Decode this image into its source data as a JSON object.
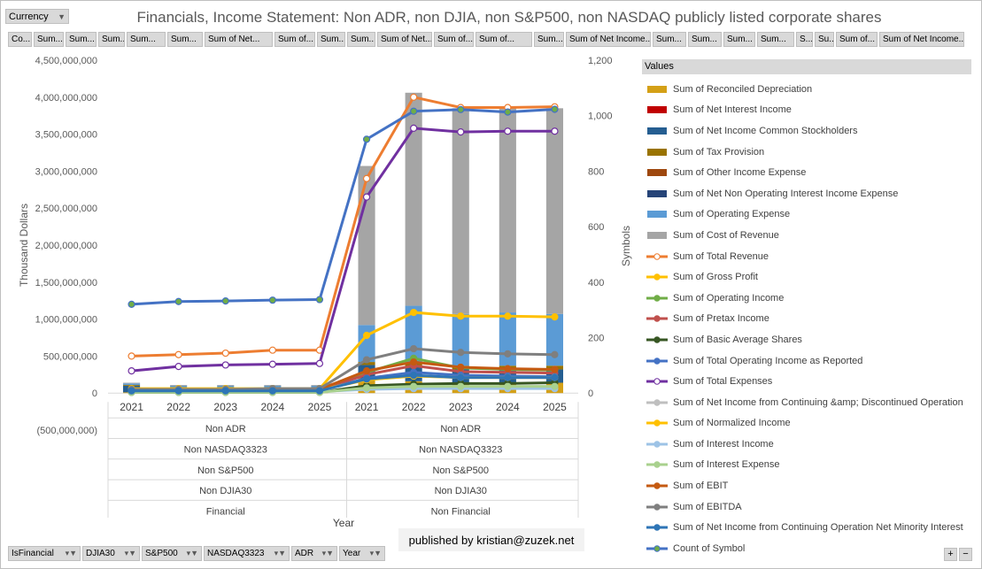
{
  "currency_button": {
    "label": "Currency"
  },
  "column_buttons": [
    "Co...",
    "Sum...",
    "Sum...",
    "Sum...",
    "Sum...",
    "Sum...",
    "Sum of Net...",
    "Sum of...",
    "Sum...",
    "Sum...",
    "Sum of Net...",
    "Sum of...",
    "Sum of...",
    "Sum...",
    "Sum of Net Income...",
    "Sum...",
    "Sum...",
    "Sum...",
    "Sum...",
    "S...",
    "Su...",
    "Sum of...",
    "Sum of Net Income..."
  ],
  "row_filters": [
    "IsFinancial",
    "DJIA30",
    "S&P500",
    "NASDAQ3323",
    "ADR",
    "Year"
  ],
  "published": "published by kristian@zuzek.net",
  "legend_title": "Values",
  "colors": {
    "button_bg": "#d9d9d9",
    "text": "#595959"
  },
  "chart_data": {
    "type": "bar",
    "title": "Financials, Income Statement: Non ADR, non DJIA, non S&P500, non NASDAQ publicly listed corporate shares",
    "ylabel": "Thousand Dollars",
    "y2label": "Symbols",
    "xlabel": "Year",
    "ylim": [
      -500000000,
      4500000000
    ],
    "y2lim": [
      0,
      1200
    ],
    "yticks": [
      "4,500,000,000",
      "4,000,000,000",
      "3,500,000,000",
      "3,000,000,000",
      "2,500,000,000",
      "2,000,000,000",
      "1,500,000,000",
      "1,000,000,000",
      "500,000,000",
      "0",
      "(500,000,000)"
    ],
    "y2ticks": [
      "1,200",
      "1,000",
      "800",
      "600",
      "400",
      "200",
      "0"
    ],
    "categories": [
      "2021",
      "2022",
      "2023",
      "2024",
      "2025",
      "2021",
      "2022",
      "2023",
      "2024",
      "2025"
    ],
    "group_levels": [
      {
        "groups": [
          "Non ADR",
          "Non ADR"
        ]
      },
      {
        "groups": [
          "Non NASDAQ3323",
          "Non NASDAQ3323"
        ]
      },
      {
        "groups": [
          "Non S&P500",
          "Non S&P500"
        ]
      },
      {
        "groups": [
          "Non DJIA30",
          "Non DJIA30"
        ]
      },
      {
        "groups": [
          "Financial",
          "Non Financial"
        ]
      }
    ],
    "bar_series": [
      {
        "name": "Sum of Reconciled Depreciation",
        "color": "#d4a017",
        "values": [
          10000000,
          10000000,
          10000000,
          10000000,
          10000000,
          200000000,
          160000000,
          140000000,
          140000000,
          140000000
        ]
      },
      {
        "name": "Sum of Net Interest Income",
        "color": "#c00000",
        "values": [
          0,
          0,
          0,
          0,
          0,
          0,
          0,
          0,
          0,
          0
        ]
      },
      {
        "name": "Sum of Net Income Common Stockholders",
        "color": "#255e91",
        "values": [
          90000000,
          60000000,
          60000000,
          60000000,
          60000000,
          180000000,
          200000000,
          180000000,
          180000000,
          180000000
        ]
      },
      {
        "name": "Sum of Tax Provision",
        "color": "#997300",
        "values": [
          10000000,
          10000000,
          10000000,
          10000000,
          10000000,
          40000000,
          50000000,
          50000000,
          50000000,
          50000000
        ]
      },
      {
        "name": "Sum of Other Income Expense",
        "color": "#9e480e",
        "values": [
          0,
          0,
          0,
          0,
          0,
          0,
          0,
          0,
          0,
          0
        ]
      },
      {
        "name": "Sum of Net Non Operating Interest Income Expense",
        "color": "#264478",
        "values": [
          0,
          0,
          0,
          0,
          0,
          0,
          0,
          0,
          0,
          0
        ]
      },
      {
        "name": "Sum of Operating Expense",
        "color": "#5b9bd5",
        "values": [
          20000000,
          20000000,
          20000000,
          20000000,
          20000000,
          500000000,
          770000000,
          700000000,
          720000000,
          700000000
        ]
      },
      {
        "name": "Sum of Cost of Revenue",
        "color": "#a5a5a5",
        "values": [
          10000000,
          10000000,
          10000000,
          10000000,
          10000000,
          2150000000,
          2880000000,
          2780000000,
          2770000000,
          2780000000
        ]
      }
    ],
    "line_series": [
      {
        "name": "Sum of Total Revenue",
        "color": "#ed7d31",
        "marker": "hollow",
        "axis": "primary",
        "values": [
          500000000,
          520000000,
          540000000,
          580000000,
          580000000,
          2900000000,
          4000000000,
          3860000000,
          3860000000,
          3870000000
        ]
      },
      {
        "name": "Sum of Gross Profit",
        "color": "#ffc000",
        "marker": "filled",
        "axis": "primary",
        "values": [
          60000000,
          60000000,
          60000000,
          60000000,
          60000000,
          780000000,
          1090000000,
          1040000000,
          1040000000,
          1030000000
        ]
      },
      {
        "name": "Sum of Operating Income",
        "color": "#70ad47",
        "marker": "filled",
        "axis": "primary",
        "values": [
          30000000,
          30000000,
          30000000,
          30000000,
          30000000,
          280000000,
          470000000,
          340000000,
          320000000,
          310000000
        ]
      },
      {
        "name": "Sum of Pretax Income",
        "color": "#c0504d",
        "marker": "filled",
        "axis": "primary",
        "values": [
          30000000,
          40000000,
          30000000,
          40000000,
          40000000,
          250000000,
          370000000,
          290000000,
          280000000,
          270000000
        ]
      },
      {
        "name": "Sum of Basic Average Shares",
        "color": "#375623",
        "marker": "filled",
        "axis": "primary",
        "values": [
          10000000,
          10000000,
          10000000,
          10000000,
          10000000,
          100000000,
          120000000,
          130000000,
          130000000,
          140000000
        ]
      },
      {
        "name": "Sum of Total Operating Income as Reported",
        "color": "#4472c4",
        "marker": "filled",
        "axis": "primary",
        "values": [
          30000000,
          30000000,
          30000000,
          30000000,
          30000000,
          200000000,
          280000000,
          240000000,
          230000000,
          220000000
        ]
      },
      {
        "name": "Sum of Total Expenses",
        "color": "#7030a0",
        "marker": "hollow",
        "axis": "primary",
        "values": [
          300000000,
          360000000,
          380000000,
          390000000,
          400000000,
          2650000000,
          3580000000,
          3530000000,
          3540000000,
          3540000000
        ]
      },
      {
        "name": "Sum of Net Income from Continuing &amp; Discontinued Operation",
        "color": "#bfbfbf",
        "marker": "filled",
        "axis": "primary",
        "values": [
          40000000,
          40000000,
          40000000,
          40000000,
          40000000,
          180000000,
          230000000,
          210000000,
          210000000,
          210000000
        ]
      },
      {
        "name": "Sum of Normalized Income",
        "color": "#ffc000",
        "marker": "filled",
        "axis": "primary",
        "values": [
          40000000,
          40000000,
          40000000,
          40000000,
          40000000,
          180000000,
          230000000,
          210000000,
          210000000,
          210000000
        ]
      },
      {
        "name": "Sum of Interest Income",
        "color": "#9dc3e6",
        "marker": "filled",
        "axis": "primary",
        "values": [
          20000000,
          20000000,
          20000000,
          20000000,
          20000000,
          50000000,
          60000000,
          60000000,
          60000000,
          60000000
        ]
      },
      {
        "name": "Sum of Interest Expense",
        "color": "#a9d18e",
        "marker": "filled",
        "axis": "primary",
        "values": [
          10000000,
          10000000,
          10000000,
          10000000,
          10000000,
          70000000,
          90000000,
          90000000,
          90000000,
          90000000
        ]
      },
      {
        "name": "Sum of EBIT",
        "color": "#c55a11",
        "marker": "filled",
        "axis": "primary",
        "values": [
          40000000,
          40000000,
          40000000,
          50000000,
          50000000,
          300000000,
          420000000,
          350000000,
          330000000,
          320000000
        ]
      },
      {
        "name": "Sum of EBITDA",
        "color": "#7f7f7f",
        "marker": "filled",
        "axis": "primary",
        "values": [
          50000000,
          50000000,
          50000000,
          60000000,
          60000000,
          450000000,
          600000000,
          550000000,
          530000000,
          520000000
        ]
      },
      {
        "name": "Sum of Net Income from Continuing Operation Net Minority Interest",
        "color": "#2e75b6",
        "marker": "filled",
        "axis": "primary",
        "values": [
          30000000,
          30000000,
          30000000,
          30000000,
          30000000,
          190000000,
          240000000,
          210000000,
          210000000,
          210000000
        ]
      },
      {
        "name": "Count of Symbol",
        "color": "#4472c4",
        "marker": "green",
        "axis": "secondary",
        "values": [
          320,
          330,
          332,
          335,
          337,
          915,
          1016,
          1022,
          1013,
          1023
        ]
      }
    ]
  }
}
